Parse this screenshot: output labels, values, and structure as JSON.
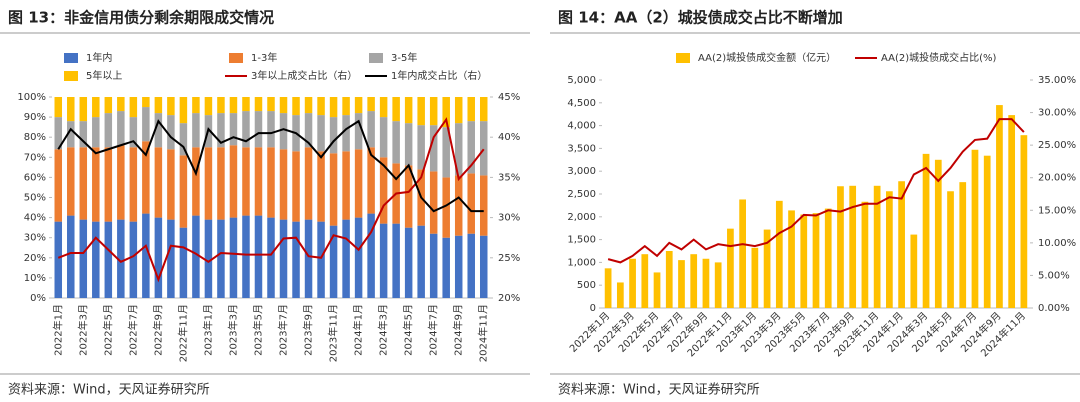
{
  "chart_data": [
    {
      "type": "bar",
      "stacked": true,
      "title": "图 13：非金信用债分剩余期限成交情况",
      "source": "资料来源：Wind，天风证券研究所",
      "categories": [
        "2022年1月",
        null,
        "2022年3月",
        null,
        "2022年5月",
        null,
        "2022年7月",
        null,
        "2022年9月",
        null,
        "2022年11月",
        null,
        "2023年1月",
        null,
        "2023年3月",
        null,
        "2023年5月",
        null,
        "2023年7月",
        null,
        "2023年9月",
        null,
        "2023年11月",
        null,
        "2024年1月",
        null,
        "2024年3月",
        null,
        "2024年5月",
        null,
        "2024年7月",
        null,
        "2024年9月",
        null,
        "2024年11月"
      ],
      "ylim": [
        0,
        100
      ],
      "yticks": [
        {
          "value": 0,
          "label": "0%"
        },
        {
          "value": 10,
          "label": "10%"
        },
        {
          "value": 20,
          "label": "20%"
        },
        {
          "value": 30,
          "label": "30%"
        },
        {
          "value": 40,
          "label": "40%"
        },
        {
          "value": 50,
          "label": "50%"
        },
        {
          "value": 60,
          "label": "60%"
        },
        {
          "value": 70,
          "label": "70%"
        },
        {
          "value": 80,
          "label": "80%"
        },
        {
          "value": 90,
          "label": "90%"
        },
        {
          "value": 100,
          "label": "100%"
        }
      ],
      "y2lim": [
        20,
        45
      ],
      "y2ticks": [
        {
          "value": 20,
          "label": "20%"
        },
        {
          "value": 25,
          "label": "25%"
        },
        {
          "value": 30,
          "label": "30%"
        },
        {
          "value": 35,
          "label": "35%"
        },
        {
          "value": 40,
          "label": "40%"
        },
        {
          "value": 45,
          "label": "45%"
        }
      ],
      "series": [
        {
          "name": "1年内",
          "color": "#4472c4",
          "values": [
            38,
            41,
            39,
            38,
            38,
            39,
            38,
            42,
            40,
            39,
            35,
            41,
            39,
            39,
            40,
            41,
            41,
            40,
            39,
            38,
            39,
            38,
            36,
            39,
            40,
            42,
            37,
            37,
            35,
            36,
            32,
            30,
            31,
            32,
            31
          ]
        },
        {
          "name": "1-3年",
          "color": "#ed7d31",
          "values": [
            36,
            34,
            36,
            37,
            37,
            37,
            37,
            36,
            35,
            35,
            36,
            34,
            36,
            36,
            36,
            34,
            34,
            35,
            35,
            35,
            36,
            35,
            36,
            34,
            34,
            33,
            33,
            30,
            31,
            28,
            31,
            30,
            30,
            30,
            30
          ]
        },
        {
          "name": "3-5年",
          "color": "#a5a5a5",
          "values": [
            16,
            13,
            13,
            15,
            17,
            17,
            15,
            17,
            17,
            17,
            16,
            17,
            16,
            17,
            16,
            18,
            18,
            18,
            18,
            18,
            17,
            18,
            18,
            18,
            18,
            18,
            20,
            21,
            21,
            22,
            23,
            25,
            26,
            26,
            27
          ]
        },
        {
          "name": "5年以上",
          "color": "#ffc000",
          "values": [
            10,
            12,
            12,
            10,
            8,
            7,
            10,
            5,
            8,
            9,
            13,
            8,
            9,
            8,
            8,
            7,
            7,
            7,
            8,
            9,
            8,
            9,
            10,
            9,
            8,
            7,
            10,
            12,
            13,
            14,
            14,
            15,
            13,
            12,
            12
          ]
        },
        {
          "name": "3年以上成交占比（右）",
          "type": "line",
          "axis": "y2",
          "color": "#c00000",
          "values": [
            25,
            25.6,
            25.6,
            27.5,
            26,
            24.5,
            25.2,
            26.5,
            22.3,
            26.5,
            26.3,
            25.5,
            24.5,
            25.6,
            25.5,
            25.4,
            25.4,
            25.4,
            27.4,
            27.5,
            25.2,
            25,
            27.8,
            27.4,
            26,
            28.2,
            31.5,
            33,
            33.2,
            35,
            40,
            42.2,
            34.8,
            36.5,
            38.5
          ]
        },
        {
          "name": "1年内成交占比（右）",
          "type": "line",
          "axis": "y2",
          "color": "#000000",
          "values": [
            38.5,
            41,
            39.5,
            38,
            38.5,
            39,
            39.5,
            37.8,
            42,
            40,
            38.8,
            35.5,
            41,
            39.3,
            40,
            39.5,
            40.5,
            40.5,
            41,
            40.5,
            39.3,
            37.5,
            39.5,
            41,
            42,
            37.8,
            36.5,
            34.8,
            36.5,
            32.5,
            30.8,
            31.5,
            32.5,
            30.8,
            30.8
          ]
        }
      ]
    },
    {
      "type": "bar",
      "stacked": false,
      "title": "图 14：AA（2）城投债成交占比不断增加",
      "source": "资料来源：Wind，天风证券研究所",
      "categories": [
        "2022年1月",
        null,
        "2022年3月",
        null,
        "2022年5月",
        null,
        "2022年7月",
        null,
        "2022年9月",
        null,
        "2022年11月",
        null,
        "2023年1月",
        null,
        "2023年3月",
        null,
        "2023年5月",
        null,
        "2023年7月",
        null,
        "2023年9月",
        null,
        "2023年11月",
        null,
        "2024年1月",
        null,
        "2024年3月",
        null,
        "2024年5月",
        null,
        "2024年7月",
        null,
        "2024年9月",
        null,
        "2024年11月"
      ],
      "ylim": [
        0,
        5000
      ],
      "yticks": [
        0,
        500,
        {
          "value": 1000,
          "label": "1,000"
        },
        {
          "value": 1500,
          "label": "1,500"
        },
        {
          "value": 2000,
          "label": "2,000"
        },
        {
          "value": 2500,
          "label": "2,500"
        },
        {
          "value": 3000,
          "label": "3,000"
        },
        {
          "value": 3500,
          "label": "3,500"
        },
        {
          "value": 4000,
          "label": "4,000"
        },
        {
          "value": 4500,
          "label": "4,500"
        },
        {
          "value": 5000,
          "label": "5,000"
        }
      ],
      "y2lim": [
        0,
        35
      ],
      "y2ticks": [
        {
          "value": 0,
          "label": "0.00%"
        },
        {
          "value": 5,
          "label": "5.00%"
        },
        {
          "value": 10,
          "label": "10.00%"
        },
        {
          "value": 15,
          "label": "15.00%"
        },
        {
          "value": 20,
          "label": "20.00%"
        },
        {
          "value": 25,
          "label": "25.00%"
        },
        {
          "value": 30,
          "label": "30.00%"
        },
        {
          "value": 35,
          "label": "35.00%"
        }
      ],
      "series": [
        {
          "name": "AA(2)城投债成交金额（亿元）",
          "color": "#ffc000",
          "values": [
            870,
            560,
            1080,
            1180,
            780,
            1250,
            1050,
            1180,
            1080,
            1000,
            1740,
            2380,
            1320,
            1720,
            2350,
            2140,
            2050,
            2080,
            2180,
            2670,
            2680,
            2330,
            2680,
            2560,
            2780,
            1610,
            3380,
            3250,
            2560,
            2760,
            3470,
            3340,
            4450,
            4230,
            3790
          ]
        },
        {
          "name": "AA(2)城投债成交占比(%)",
          "type": "line",
          "axis": "y2",
          "color": "#c00000",
          "values": [
            7.5,
            7,
            8,
            9.5,
            8,
            10,
            9,
            10.5,
            9,
            9.8,
            9.5,
            9.8,
            9.5,
            10,
            11.5,
            12.5,
            14.3,
            14.2,
            15,
            14.8,
            15.5,
            16,
            16,
            17,
            16.8,
            20.5,
            21.5,
            19.5,
            21.5,
            24,
            25.8,
            26,
            29,
            29,
            27
          ]
        }
      ]
    }
  ]
}
